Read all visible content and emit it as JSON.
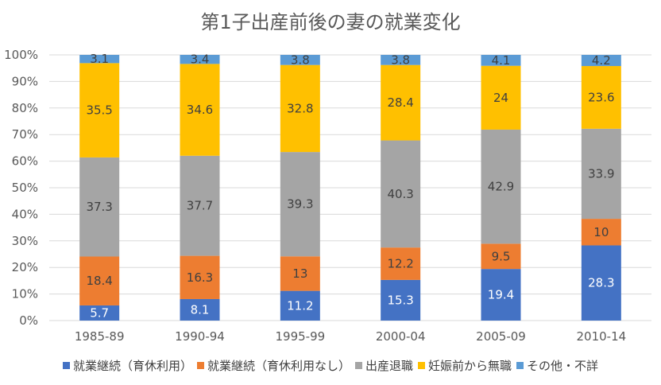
{
  "chart_data": {
    "type": "bar",
    "stacked": true,
    "normalized": true,
    "title": "第1子出産前後の妻の就業変化",
    "categories": [
      "1985-89",
      "1990-94",
      "1995-99",
      "2000-04",
      "2005-09",
      "2010-14"
    ],
    "series": [
      {
        "name": "就業継続（育休利用）",
        "color": "#4472C4",
        "values": [
          5.7,
          8.1,
          11.2,
          15.3,
          19.4,
          28.3
        ]
      },
      {
        "name": "就業継続（育休利用なし）",
        "color": "#ED7D31",
        "values": [
          18.4,
          16.3,
          13,
          12.2,
          9.5,
          10
        ]
      },
      {
        "name": "出産退職",
        "color": "#A5A5A5",
        "values": [
          37.3,
          37.7,
          39.3,
          40.3,
          42.9,
          33.9
        ]
      },
      {
        "name": "妊娠前から無職",
        "color": "#FFC000",
        "values": [
          35.5,
          34.6,
          32.8,
          28.4,
          24,
          23.6
        ]
      },
      {
        "name": "その他・不詳",
        "color": "#5B9BD5",
        "values": [
          3.1,
          3.4,
          3.8,
          3.8,
          4.1,
          4.2
        ]
      }
    ],
    "ylim": [
      0,
      100
    ],
    "yticks": [
      "0%",
      "10%",
      "20%",
      "30%",
      "40%",
      "50%",
      "60%",
      "70%",
      "80%",
      "90%",
      "100%"
    ],
    "grid": true,
    "legend_position": "bottom"
  }
}
